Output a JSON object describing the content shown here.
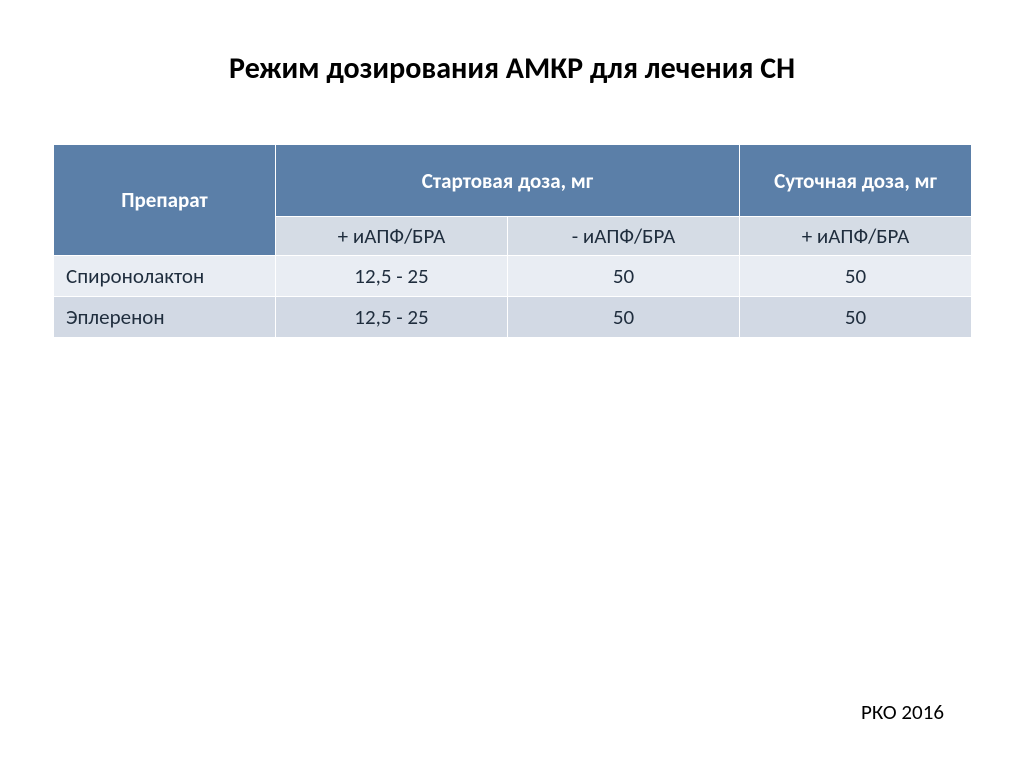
{
  "title": "Режим дозирования АМКР для лечения СН",
  "table": {
    "header": {
      "drug": "Препарат",
      "start_dose": "Стартовая доза, мг",
      "daily_dose": "Суточная доза, мг",
      "sub_with": "+ иАПФ/БРА",
      "sub_without": "- иАПФ/БРА",
      "sub_daily": "+ иАПФ/БРА"
    },
    "rows": [
      {
        "name": "Спиронолактон",
        "start_with": "12,5 - 25",
        "start_without": "50",
        "daily": "50"
      },
      {
        "name": "Эплеренон",
        "start_with": "12,5 - 25",
        "start_without": "50",
        "daily": "50"
      }
    ],
    "colors": {
      "header_bg": "#5b7fa8",
      "header_text": "#ffffff",
      "subheader_bg": "#d5dce5",
      "row_odd_bg": "#e9edf3",
      "row_even_bg": "#d2d9e4",
      "body_text": "#1f2d3d",
      "border": "#ffffff"
    },
    "font": {
      "title_size_pt": 22,
      "cell_size_pt": 16,
      "title_weight": "bold",
      "header_weight": "bold"
    }
  },
  "footer": "РКО 2016"
}
